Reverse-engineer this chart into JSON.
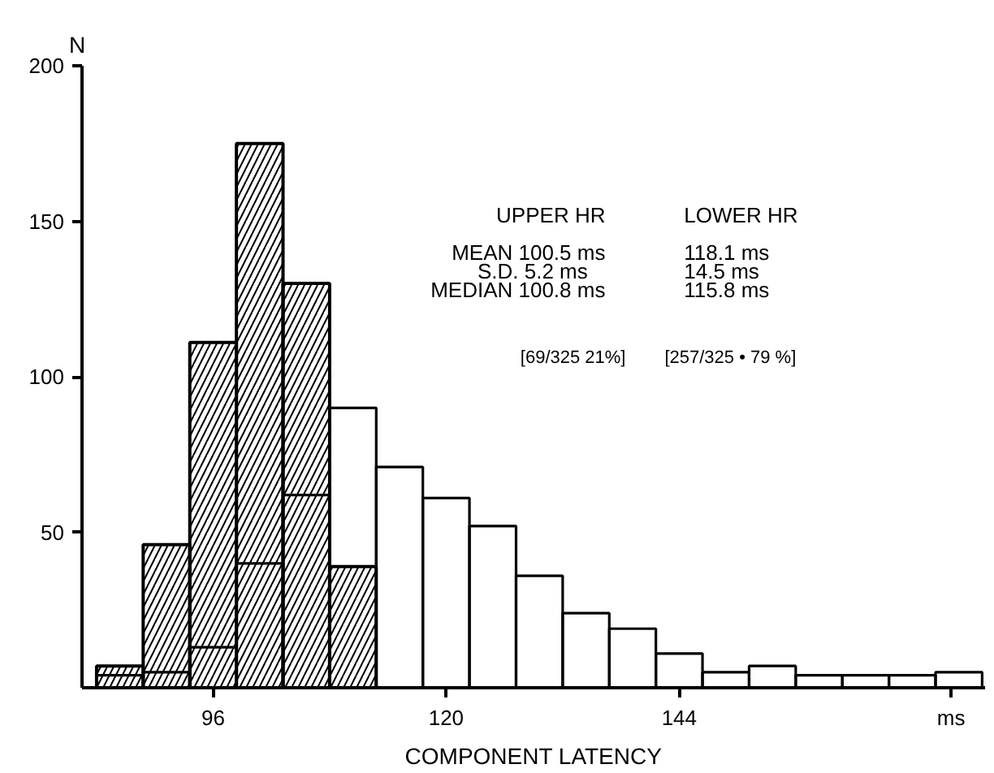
{
  "chart_data": {
    "type": "histogram",
    "xlabel": "COMPONENT LATENCY",
    "ylabel": "N",
    "bins": [
      84,
      88.8,
      93.6,
      98.4,
      103.2,
      108,
      112.8,
      117.6,
      122.4,
      127.2,
      132,
      136.8,
      141.6,
      146.4,
      151.2,
      156,
      160.8,
      165.6,
      170.4,
      175.2
    ],
    "series": [
      {
        "color": "#000000",
        "values": [
          7,
          46,
          111,
          175,
          130,
          39,
          0,
          0,
          0,
          0,
          0,
          0,
          0,
          0,
          0,
          0,
          0,
          0,
          0
        ]
      },
      {
        "color": "#000000",
        "values": [
          4,
          5,
          13,
          40,
          62,
          90,
          71,
          61,
          52,
          36,
          24,
          19,
          11,
          5,
          7,
          4,
          4,
          4,
          5
        ]
      }
    ],
    "xlim": [
      82.5,
      175.5
    ],
    "ylim": [
      0,
      200
    ],
    "xticks": [
      96,
      120,
      144,
      {
        "value": 172,
        "label": "ms"
      }
    ],
    "yticks": [
      50,
      100,
      150,
      200
    ],
    "grid": false,
    "annotations": [
      "UPPER  HR",
      "LOWER HR",
      "MEAN 100.5  ms",
      "118.1  ms",
      "S.D.    5.2  ms",
      "14.5  ms",
      "MEDIAN 100.8  ms",
      "115.8  ms",
      "[69/325  21%]",
      "[257/325 • 79 %]"
    ]
  }
}
